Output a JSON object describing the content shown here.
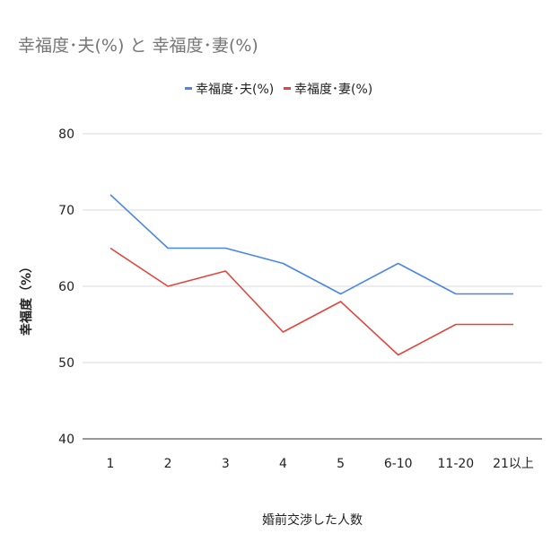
{
  "chart_data": {
    "type": "line",
    "title": "幸福度･夫(%) と 幸福度･妻(%)",
    "xlabel": "婚前交渉した人数",
    "ylabel": "幸福度（%）",
    "categories": [
      "1",
      "2",
      "3",
      "4",
      "5",
      "6-10",
      "11-20",
      "21以上"
    ],
    "ylim": [
      40,
      80
    ],
    "yticks": [
      "40",
      "50",
      "60",
      "70",
      "80"
    ],
    "grid": true,
    "legend_position": "top",
    "series": [
      {
        "name": "幸福度･夫(%)",
        "color": "#4a86e8",
        "values": [
          72,
          65,
          65,
          63,
          59,
          63,
          59,
          59
        ]
      },
      {
        "name": "幸福度･妻(%)",
        "color": "#e0463c",
        "values": [
          65,
          60,
          62,
          54,
          58,
          51,
          55,
          55
        ]
      }
    ]
  }
}
